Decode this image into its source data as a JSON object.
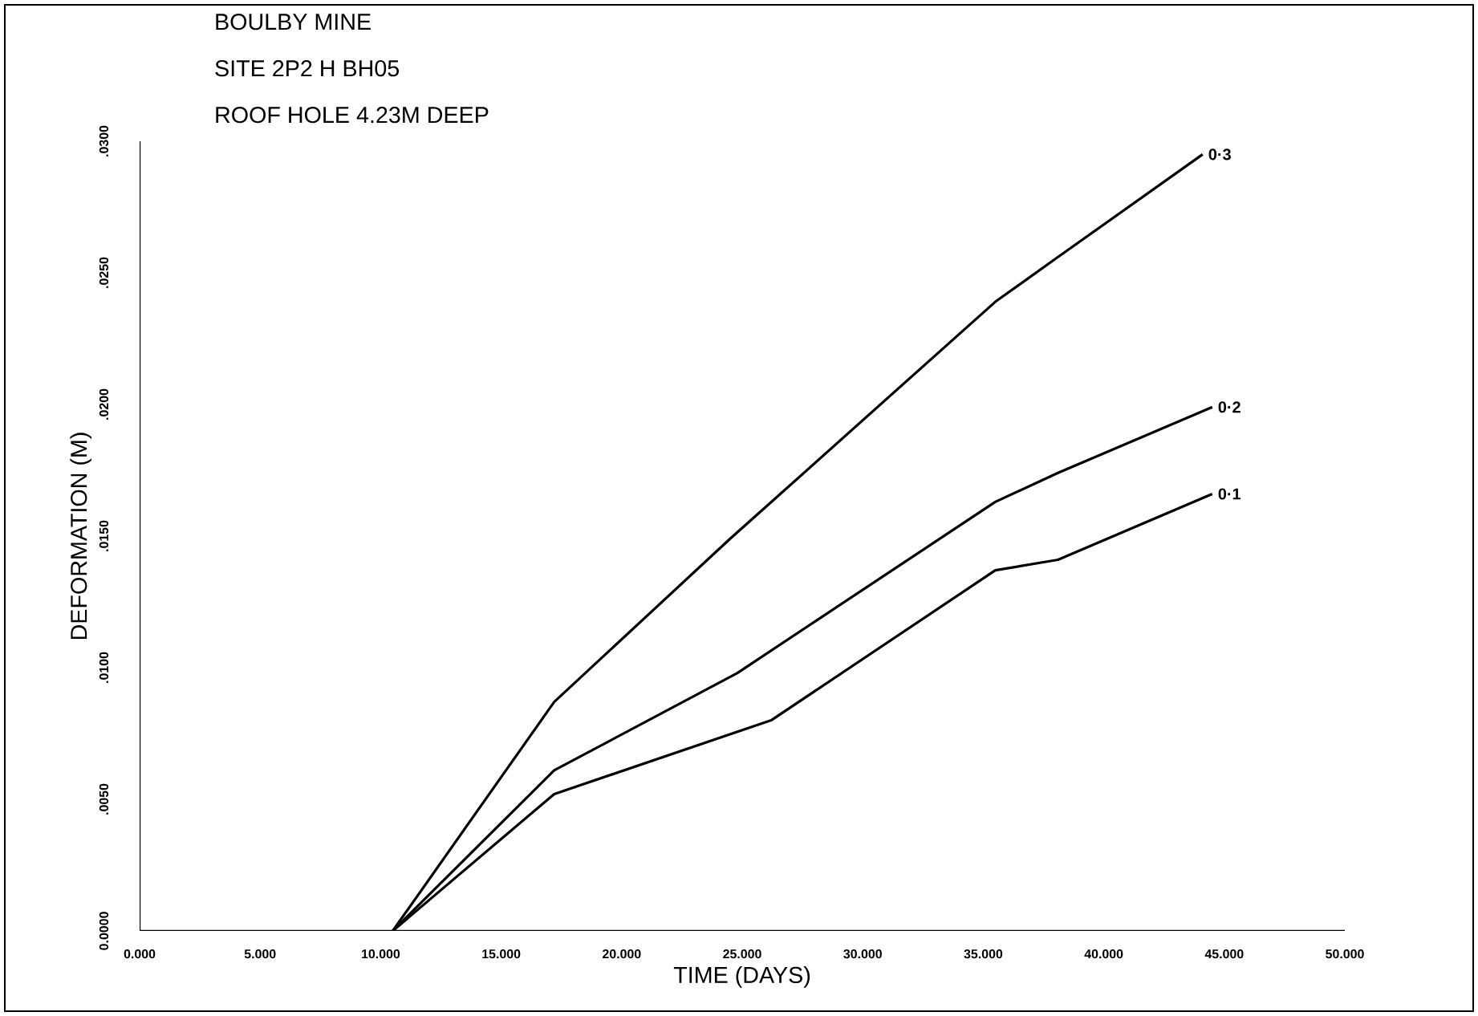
{
  "chart_data": {
    "type": "line",
    "title": "BOULBY MINE",
    "annotations": [
      "SITE 2P2 H BH05",
      "ROOF HOLE 4.23M DEEP"
    ],
    "xlabel": "TIME  (DAYS)",
    "ylabel": "DEFORMATION  (M)",
    "xlim": [
      0,
      50
    ],
    "xticks": [
      {
        "value": 0,
        "label": "0.000"
      },
      {
        "value": 5,
        "label": "5.000"
      },
      {
        "value": 10,
        "label": "10.000"
      },
      {
        "value": 15,
        "label": "15.000"
      },
      {
        "value": 20,
        "label": "20.000"
      },
      {
        "value": 25,
        "label": "25.000"
      },
      {
        "value": 30,
        "label": "30.000"
      },
      {
        "value": 35,
        "label": "35.000"
      },
      {
        "value": 40,
        "label": "40.000"
      },
      {
        "value": 45,
        "label": "45.000"
      },
      {
        "value": 50,
        "label": "50.000"
      }
    ],
    "ylim": [
      0,
      0.03
    ],
    "yticks": [
      {
        "value": 0,
        "label": "0.0000"
      },
      {
        "value": 0.005,
        "label": ".0050"
      },
      {
        "value": 0.01,
        "label": ".0100"
      },
      {
        "value": 0.015,
        "label": ".0150"
      },
      {
        "value": 0.02,
        "label": ".0200"
      },
      {
        "value": 0.025,
        "label": ".0250"
      },
      {
        "value": 0.03,
        "label": ".0300"
      }
    ],
    "grid": false,
    "legend": false,
    "marker": "none",
    "line_style": "solid",
    "series": [
      {
        "name": "0·1",
        "color": "#000000",
        "x": [
          10.5,
          17.2,
          26.2,
          35.5,
          38.1,
          44.5
        ],
        "values": [
          0,
          0.0052,
          0.008,
          0.0137,
          0.0141,
          0.0166
        ]
      },
      {
        "name": "0·2",
        "color": "#000000",
        "x": [
          10.5,
          17.2,
          24.8,
          35.5,
          38.1,
          44.5
        ],
        "values": [
          0,
          0.0061,
          0.0098,
          0.0163,
          0.0174,
          0.0199
        ]
      },
      {
        "name": "0·3",
        "color": "#000000",
        "x": [
          10.5,
          17.2,
          24.5,
          35.5,
          38.1,
          44.1
        ],
        "values": [
          0,
          0.0087,
          0.0149,
          0.0239,
          0.0256,
          0.0295
        ]
      }
    ]
  }
}
